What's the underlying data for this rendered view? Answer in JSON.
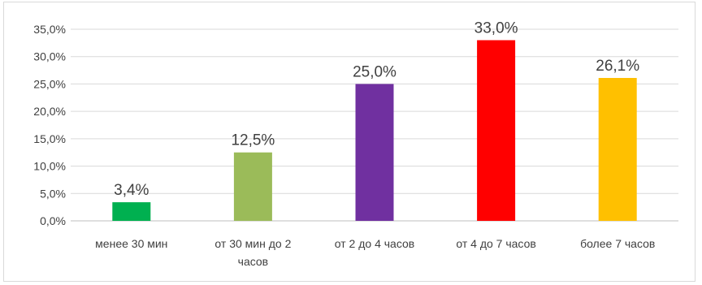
{
  "chart_data": {
    "type": "bar",
    "categories": [
      [
        "менее 30 мин"
      ],
      [
        "от 30 мин до 2",
        "часов"
      ],
      [
        "от 2 до 4 часов"
      ],
      [
        "от 4 до 7 часов"
      ],
      [
        "более 7 часов"
      ]
    ],
    "values": [
      3.4,
      12.5,
      25.0,
      33.0,
      26.1
    ],
    "data_labels": [
      "3,4%",
      "12,5%",
      "25,0%",
      "33,0%",
      "26,1%"
    ],
    "colors": [
      "#00b050",
      "#9bbb59",
      "#7030a0",
      "#ff0000",
      "#ffc000"
    ],
    "ylim": [
      0,
      35
    ],
    "yticks": [
      "0,0%",
      "5,0%",
      "10,0%",
      "15,0%",
      "20,0%",
      "25,0%",
      "30,0%",
      "35,0%"
    ],
    "grid": true,
    "legend": "none",
    "title": "",
    "xlabel": "",
    "ylabel": ""
  }
}
